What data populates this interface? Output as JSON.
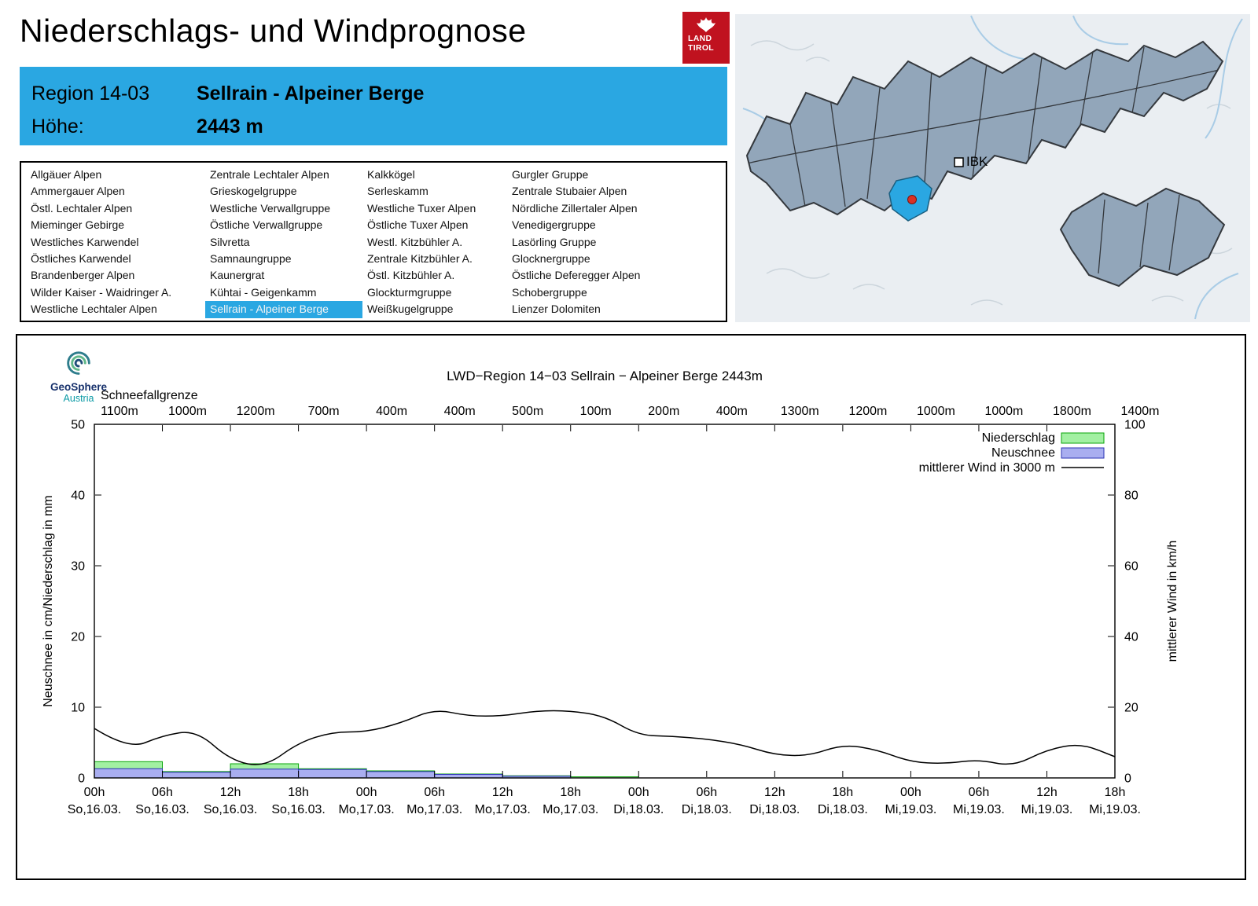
{
  "header": {
    "title": "Niederschlags- und Windprognose",
    "logo_line1": "LAND",
    "logo_line2": "TIROL"
  },
  "region_box": {
    "region_label": "Region 14-03",
    "region_name": "Sellrain - Alpeiner Berge",
    "altitude_label": "Höhe:",
    "altitude_value": "2443 m",
    "accent_color": "#2aa7e2"
  },
  "region_list": {
    "selected": "Sellrain - Alpeiner Berge",
    "columns": [
      [
        "Allgäuer Alpen",
        "Ammergauer Alpen",
        "Östl. Lechtaler Alpen",
        "Mieminger Gebirge",
        "Westliches Karwendel",
        "Östliches Karwendel",
        "Brandenberger Alpen",
        "Wilder Kaiser - Waidringer A.",
        "Westliche Lechtaler Alpen"
      ],
      [
        "Zentrale Lechtaler Alpen",
        "Grieskogelgruppe",
        "Westliche Verwallgruppe",
        "Östliche Verwallgruppe",
        "Silvretta",
        "Samnaungruppe",
        "Kaunergrat",
        "Kühtai - Geigenkamm",
        "Sellrain - Alpeiner Berge"
      ],
      [
        "Kalkkögel",
        "Serleskamm",
        "Westliche Tuxer Alpen",
        "Östliche Tuxer Alpen",
        "Westl. Kitzbühler A.",
        "Zentrale Kitzbühler A.",
        "Östl. Kitzbühler A.",
        "Glockturmgruppe",
        "Weißkugelgruppe"
      ],
      [
        "Gurgler Gruppe",
        "Zentrale Stubaier Alpen",
        "Nördliche Zillertaler Alpen",
        "Venedigergruppe",
        "Lasörling Gruppe",
        "Glocknergruppe",
        "Östliche Deferegger Alpen",
        "Schobergruppe",
        "Lienzer Dolomiten"
      ]
    ]
  },
  "map": {
    "ibk_label": "IBK",
    "selected_region_color": "#2aa7e2"
  },
  "chart": {
    "logo_name": "GeoSphere",
    "logo_sub": "Austria"
  },
  "chart_data": {
    "type": "bar",
    "title": "LWD−Region 14−03 Sellrain − Alpeiner Berge 2443m",
    "snowline_label": "Schneefallgrenze",
    "snowline_values": [
      "1100m",
      "1000m",
      "1200m",
      "700m",
      "400m",
      "400m",
      "500m",
      "100m",
      "200m",
      "400m",
      "1300m",
      "1200m",
      "1000m",
      "1000m",
      "1800m",
      "1400m"
    ],
    "x_hours": [
      "00h",
      "06h",
      "12h",
      "18h",
      "00h",
      "06h",
      "12h",
      "18h",
      "00h",
      "06h",
      "12h",
      "18h",
      "00h",
      "06h",
      "12h",
      "18h"
    ],
    "x_dates": [
      "So,16.03.",
      "So,16.03.",
      "So,16.03.",
      "So,16.03.",
      "Mo,17.03.",
      "Mo,17.03.",
      "Mo,17.03.",
      "Mo,17.03.",
      "Di,18.03.",
      "Di,18.03.",
      "Di,18.03.",
      "Di,18.03.",
      "Mi,19.03.",
      "Mi,19.03.",
      "Mi,19.03.",
      "Mi,19.03."
    ],
    "hours_span": 90,
    "left_axis": {
      "label": "Neuschnee in cm/Niederschlag in mm",
      "min": 0,
      "max": 50,
      "ticks": [
        0,
        10,
        20,
        30,
        40,
        50
      ]
    },
    "right_axis": {
      "label": "mittlerer Wind in km/h",
      "min": 0,
      "max": 100,
      "ticks": [
        0,
        20,
        40,
        60,
        80,
        100
      ]
    },
    "legend": [
      "Niederschlag",
      "Neuschnee",
      "mittlerer Wind in 3000 m"
    ],
    "series": [
      {
        "name": "Niederschlag",
        "unit": "mm",
        "type": "bar",
        "interval_h": 6,
        "values": [
          2.3,
          0.9,
          2.0,
          1.3,
          1.0,
          0.55,
          0.3,
          0.15,
          0,
          0,
          0,
          0,
          0,
          0,
          0
        ]
      },
      {
        "name": "Neuschnee",
        "unit": "cm",
        "type": "bar",
        "interval_h": 6,
        "values": [
          1.3,
          0.8,
          1.25,
          1.2,
          0.9,
          0.5,
          0.25,
          0,
          0,
          0,
          0,
          0,
          0,
          0,
          0
        ]
      },
      {
        "name": "mittlerer Wind in 3000 m",
        "unit": "km/h",
        "type": "line",
        "interval_h": 3,
        "values": [
          14,
          8,
          12,
          13.5,
          5,
          3,
          10,
          13,
          13,
          15.5,
          19.5,
          17.5,
          17.5,
          19,
          19,
          17.5,
          12,
          11.8,
          11,
          9.5,
          6.5,
          6.2,
          9.5,
          8,
          4.5,
          4,
          5.2,
          3.2,
          8,
          9.8,
          6
        ]
      }
    ],
    "colors": {
      "precip_fill": "#a2f0a2",
      "precip_stroke": "#09a509",
      "snow_fill": "#a9aef0",
      "snow_stroke": "#2d35b5",
      "wind_line": "#000000"
    }
  }
}
